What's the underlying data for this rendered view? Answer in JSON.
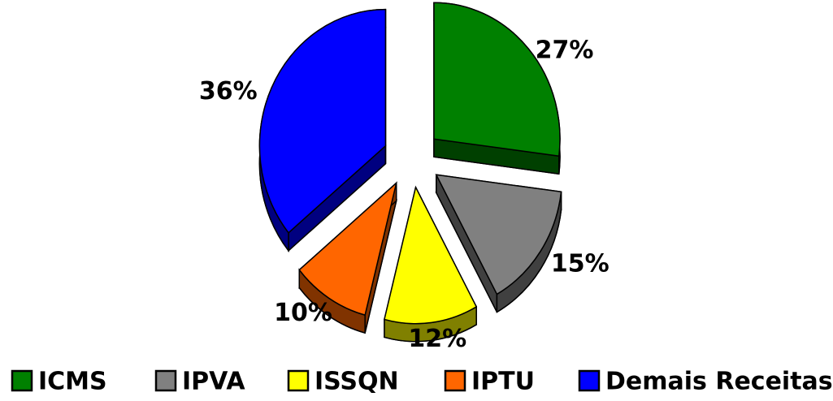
{
  "chart_data": {
    "type": "pie",
    "categories": [
      "ICMS",
      "IPVA",
      "ISSQN",
      "IPTU",
      "Demais Receitas"
    ],
    "values": [
      27,
      15,
      12,
      10,
      36
    ],
    "value_labels": [
      "27%",
      "15%",
      "12%",
      "10%",
      "36%"
    ],
    "colors": [
      "#008000",
      "#808080",
      "#ffff00",
      "#ff6600",
      "#0000ff"
    ],
    "legend": "bottom"
  }
}
